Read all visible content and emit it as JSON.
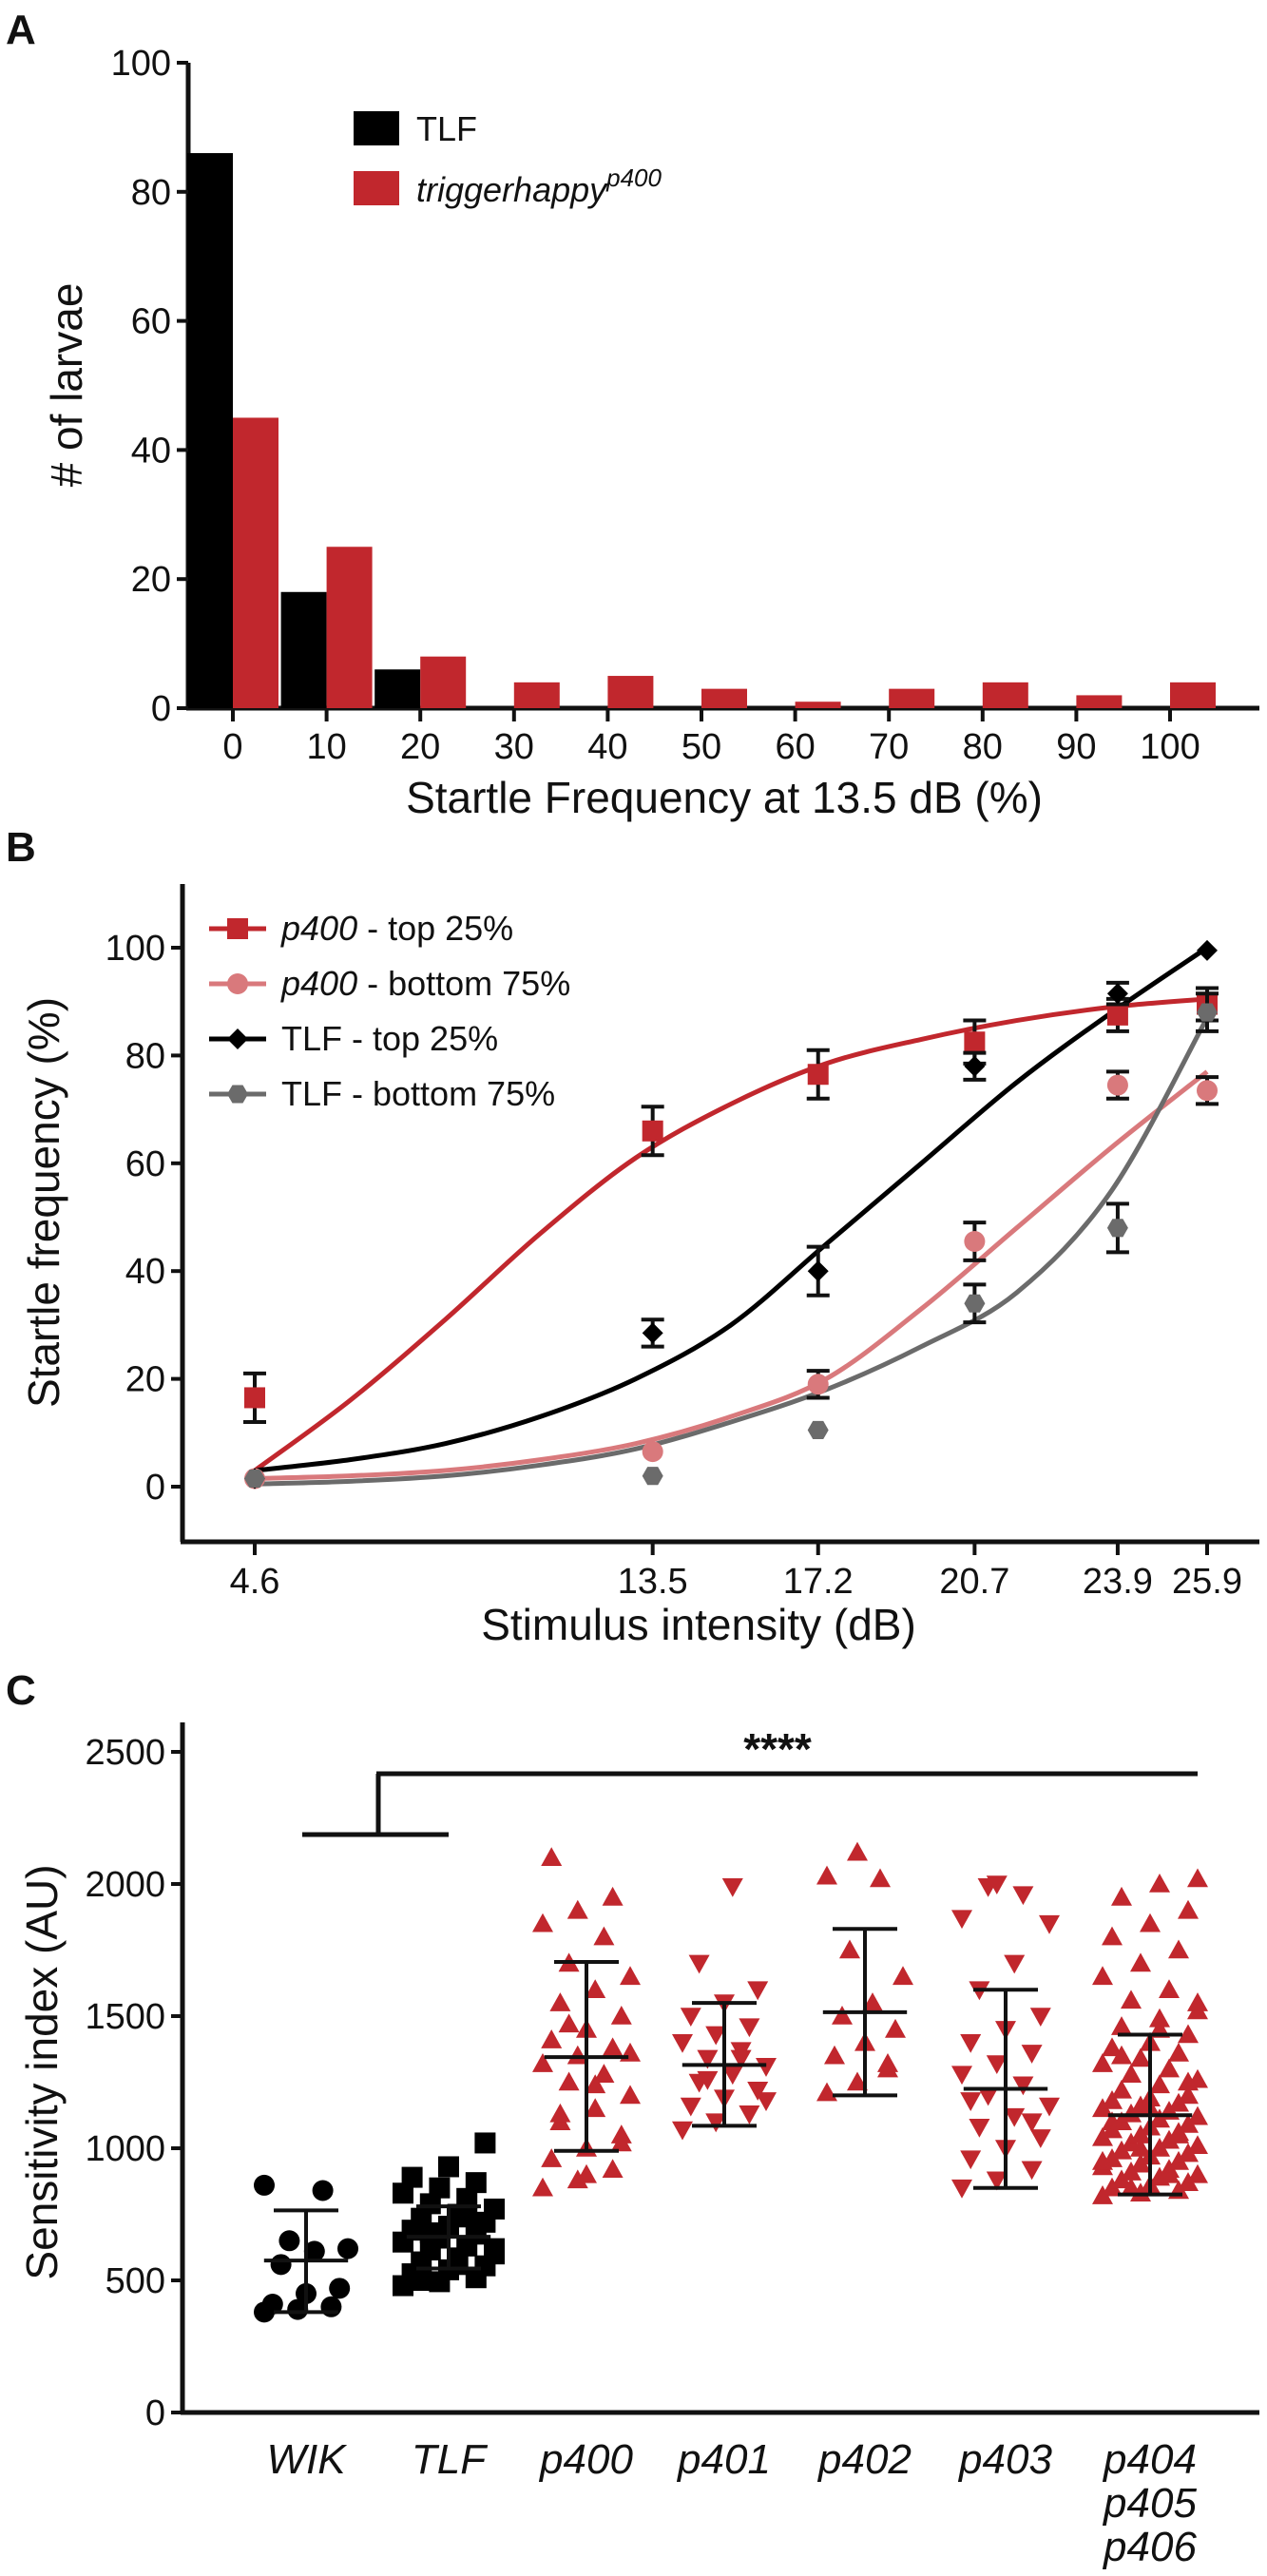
{
  "panels": {
    "a": "A",
    "b": "B",
    "c": "C"
  },
  "colors": {
    "tlf": "#000000",
    "p400": "#c1272d",
    "p400_light": "#d9797c",
    "tlf_gray": "#555555",
    "marker_gray": "#6b6b6b"
  },
  "chart_data": [
    {
      "id": "A",
      "type": "bar",
      "xlabel": "Startle Frequency at 13.5 dB (%)",
      "ylabel": "# of larvae",
      "categories": [
        "0",
        "10",
        "20",
        "30",
        "40",
        "50",
        "60",
        "70",
        "80",
        "90",
        "100"
      ],
      "ylim": [
        0,
        100
      ],
      "yticks": [
        "0",
        "20",
        "40",
        "60",
        "80",
        "100"
      ],
      "legend": {
        "placement": "top-center"
      },
      "series": [
        {
          "name": "TLF",
          "name_sup": "",
          "color": "tlf",
          "values": [
            86,
            18,
            6,
            0,
            0,
            0,
            0,
            0,
            0,
            0,
            0
          ]
        },
        {
          "name": "triggerhappy",
          "name_sup": "p400",
          "color": "p400",
          "values": [
            45,
            25,
            8,
            4,
            5,
            3,
            1,
            3,
            4,
            2,
            4
          ]
        }
      ]
    },
    {
      "id": "B",
      "type": "line",
      "xlabel": "Stimulus intensity (dB)",
      "ylabel": "Startle frequency (%)",
      "x": [
        4.6,
        13.5,
        17.2,
        20.7,
        23.9,
        25.9
      ],
      "xtick_labels": [
        "4.6",
        "13.5",
        "17.2",
        "20.7",
        "23.9",
        "25.9"
      ],
      "ylim": [
        0,
        100
      ],
      "yticks": [
        "0",
        "20",
        "40",
        "60",
        "80",
        "100"
      ],
      "legend": {
        "placement": "top-left"
      },
      "series": [
        {
          "name_italic": "p400",
          "name_rest": " - top 25%",
          "marker": "square",
          "color": "p400",
          "values": [
            16.5,
            66,
            76.5,
            82.5,
            87.5,
            89.5
          ],
          "errors": [
            4.5,
            4.5,
            4.5,
            4,
            3,
            3
          ]
        },
        {
          "name_italic": "p400",
          "name_rest": " - bottom 75%",
          "marker": "circle",
          "color": "p400_light",
          "values": [
            1.5,
            6.5,
            19,
            45.5,
            74.5,
            73.5
          ],
          "errors": [
            0,
            0,
            2.5,
            3.5,
            2.5,
            2.5
          ]
        },
        {
          "name_italic": "",
          "name_rest": "TLF - top 25%",
          "marker": "diamond",
          "color": "tlf",
          "values": [
            1.5,
            28.5,
            40,
            78,
            91.5,
            99.5
          ],
          "errors": [
            0,
            2.5,
            4.5,
            2.5,
            2,
            0
          ]
        },
        {
          "name_italic": "",
          "name_rest": "TLF - bottom 75%",
          "marker": "hexagon",
          "color": "marker_gray",
          "values": [
            1.5,
            2,
            10.5,
            34,
            48,
            88
          ],
          "errors": [
            0,
            0,
            0,
            3.5,
            4.5,
            3.5
          ]
        }
      ],
      "fits": [
        {
          "series": 0,
          "values": [
            3,
            16,
            31,
            47,
            61,
            71,
            78.5,
            83,
            86.5,
            89,
            90.5
          ]
        },
        {
          "series": 1,
          "values": [
            1.5,
            2,
            3,
            5,
            8,
            13,
            20,
            33,
            48,
            63,
            77
          ]
        },
        {
          "series": 2,
          "values": [
            3,
            5,
            8,
            13,
            20,
            30,
            45,
            60,
            75,
            88,
            100
          ]
        },
        {
          "series": 3,
          "values": [
            0.5,
            1,
            2,
            4,
            7,
            12,
            18,
            26,
            36,
            55,
            87
          ]
        }
      ]
    },
    {
      "id": "C",
      "type": "scatter",
      "ylabel": "Sensitivity index (AU)",
      "ylim": [
        0,
        2500
      ],
      "yticks": [
        "0",
        "500",
        "1000",
        "1500",
        "2000",
        "2500"
      ],
      "significance": "****",
      "categories": [
        {
          "lines": [
            "WIK"
          ],
          "marker": "circle",
          "color": "tlf",
          "mean": 575,
          "sd_low": 380,
          "sd_high": 765,
          "points": [
            380,
            390,
            400,
            410,
            450,
            470,
            560,
            610,
            620,
            650,
            840,
            860
          ]
        },
        {
          "lines": [
            "TLF"
          ],
          "marker": "square",
          "color": "tlf",
          "mean": 665,
          "sd_low": 545,
          "sd_high": 780,
          "points": [
            480,
            495,
            510,
            525,
            540,
            555,
            570,
            585,
            600,
            615,
            630,
            645,
            660,
            675,
            690,
            705,
            720,
            735,
            750,
            770,
            790,
            810,
            830,
            850,
            870,
            890,
            930,
            1020,
            500,
            560,
            620,
            680,
            740
          ]
        },
        {
          "lines": [
            "p400"
          ],
          "marker": "triangle-up",
          "color": "p400",
          "mean": 1345,
          "sd_low": 990,
          "sd_high": 1705,
          "points": [
            850,
            880,
            920,
            960,
            1000,
            1050,
            1100,
            1150,
            1200,
            1250,
            1280,
            1320,
            1350,
            1380,
            1410,
            1450,
            1500,
            1550,
            1600,
            1650,
            1700,
            1800,
            1850,
            1900,
            1950,
            2100,
            900,
            1020,
            1130,
            1240,
            1360,
            1470
          ]
        },
        {
          "lines": [
            "p401"
          ],
          "marker": "triangle-down",
          "color": "p400",
          "mean": 1315,
          "sd_low": 1085,
          "sd_high": 1550,
          "points": [
            1070,
            1100,
            1130,
            1160,
            1190,
            1220,
            1250,
            1280,
            1310,
            1340,
            1370,
            1400,
            1430,
            1460,
            1500,
            1550,
            1600,
            1700,
            1990,
            1180,
            1260,
            1340
          ]
        },
        {
          "lines": [
            "p402"
          ],
          "marker": "triangle-up",
          "color": "p400",
          "mean": 1515,
          "sd_low": 1200,
          "sd_high": 1830,
          "points": [
            1210,
            1250,
            1300,
            1350,
            1400,
            1450,
            1500,
            1550,
            1650,
            1750,
            2020,
            2030,
            2120,
            1320
          ]
        },
        {
          "lines": [
            "p403"
          ],
          "marker": "triangle-down",
          "color": "p400",
          "mean": 1225,
          "sd_low": 850,
          "sd_high": 1600,
          "points": [
            850,
            880,
            920,
            960,
            1000,
            1040,
            1080,
            1120,
            1160,
            1200,
            1240,
            1280,
            1320,
            1360,
            1400,
            1450,
            1500,
            1600,
            1700,
            1850,
            1990,
            1960,
            1870,
            2000,
            1100,
            1180
          ]
        },
        {
          "lines": [
            "p404",
            "p405",
            "p406"
          ],
          "marker": "triangle-up",
          "color": "p400",
          "mean": 1125,
          "sd_low": 825,
          "sd_high": 1430,
          "points": [
            820,
            830,
            840,
            850,
            860,
            870,
            880,
            890,
            900,
            910,
            920,
            930,
            940,
            950,
            960,
            970,
            980,
            990,
            1000,
            1010,
            1020,
            1030,
            1040,
            1050,
            1060,
            1070,
            1080,
            1090,
            1100,
            1110,
            1120,
            1130,
            1140,
            1150,
            1160,
            1170,
            1180,
            1190,
            1200,
            1220,
            1240,
            1260,
            1280,
            1300,
            1320,
            1340,
            1360,
            1380,
            1400,
            1430,
            1460,
            1490,
            1520,
            1560,
            1600,
            1650,
            1700,
            1750,
            1800,
            1850,
            1900,
            1950,
            2000,
            2020,
            850,
            900,
            950,
            1000,
            1050,
            1100,
            1150,
            1250,
            1350,
            1450,
            1550
          ]
        }
      ]
    }
  ]
}
